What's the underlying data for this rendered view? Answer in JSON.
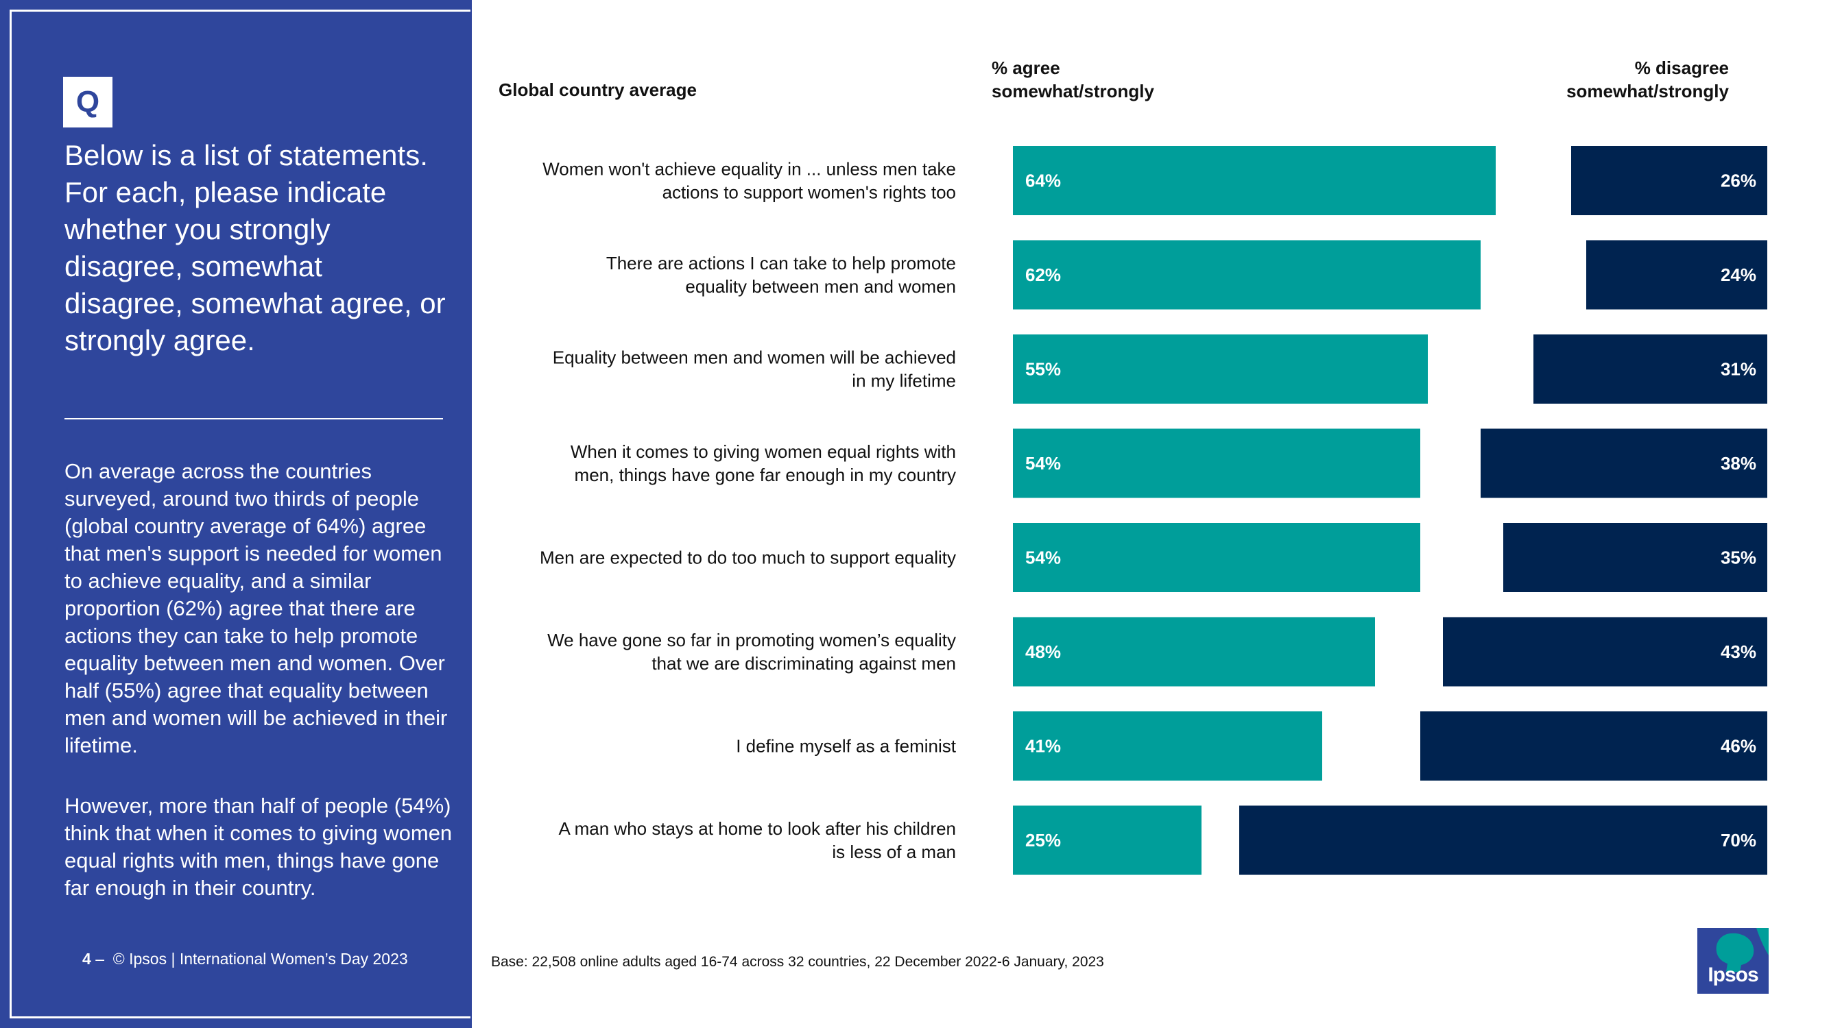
{
  "sidebar": {
    "q_label": "Q",
    "question": "Below is a list of statements. For each, please indicate whether you strongly disagree, somewhat disagree, somewhat agree, or strongly agree.",
    "summary_p1": "On average across the countries surveyed, around two thirds of people (global country average of 64%) agree that men's support is needed for women to achieve equality, and a similar proportion (62%) agree that there are actions they can take to help promote equality between men and women. Over half (55%) agree that equality between men and women will be achieved in their lifetime.",
    "summary_p2": "However, more than half of people (54%) think that when it comes to giving women equal rights with men, things have gone far enough in their country."
  },
  "footer": {
    "page_number": "4",
    "separator": "–",
    "copyright": "© Ipsos | International Women’s Day 2023",
    "base": "Base: 22,508 online adults aged 16-74 across 32 countries, 22 December 2022-6 January, 2023"
  },
  "logo": {
    "text": "Ipsos"
  },
  "colors": {
    "sidebar": "#2F469C",
    "agree": "#009E9A",
    "disagree": "#002350"
  },
  "chart_data": {
    "type": "bar",
    "title": "Global country average",
    "agree_header_line1": "% agree",
    "agree_header_line2": "somewhat/strongly",
    "disagree_header_line1": "% disagree",
    "disagree_header_line2": "somewhat/strongly",
    "categories": [
      [
        "Women won't achieve equality in ... unless men take",
        "actions to support women's rights too"
      ],
      [
        "There are actions I can take to help promote",
        "equality between men and women"
      ],
      [
        "Equality between men and women will be achieved",
        "in my lifetime"
      ],
      [
        "When it comes to giving women equal rights with",
        "men, things have gone far enough in my country"
      ],
      [
        "Men are expected to do too much to support equality"
      ],
      [
        "We have gone so far in promoting women’s equality",
        "that we are discriminating against men"
      ],
      [
        "I define myself as a feminist"
      ],
      [
        "A man who stays at home to look after his children",
        "is less of a man"
      ]
    ],
    "series": [
      {
        "name": "% agree somewhat/strongly",
        "values": [
          64,
          62,
          55,
          54,
          54,
          48,
          41,
          25
        ],
        "labels": [
          "64%",
          "62%",
          "55%",
          "54%",
          "54%",
          "48%",
          "41%",
          "25%"
        ]
      },
      {
        "name": "% disagree somewhat/strongly",
        "values": [
          26,
          24,
          31,
          38,
          35,
          43,
          46,
          70
        ],
        "labels": [
          "26%",
          "24%",
          "31%",
          "38%",
          "35%",
          "43%",
          "46%",
          "70%"
        ]
      }
    ],
    "xlim": [
      0,
      100
    ]
  }
}
